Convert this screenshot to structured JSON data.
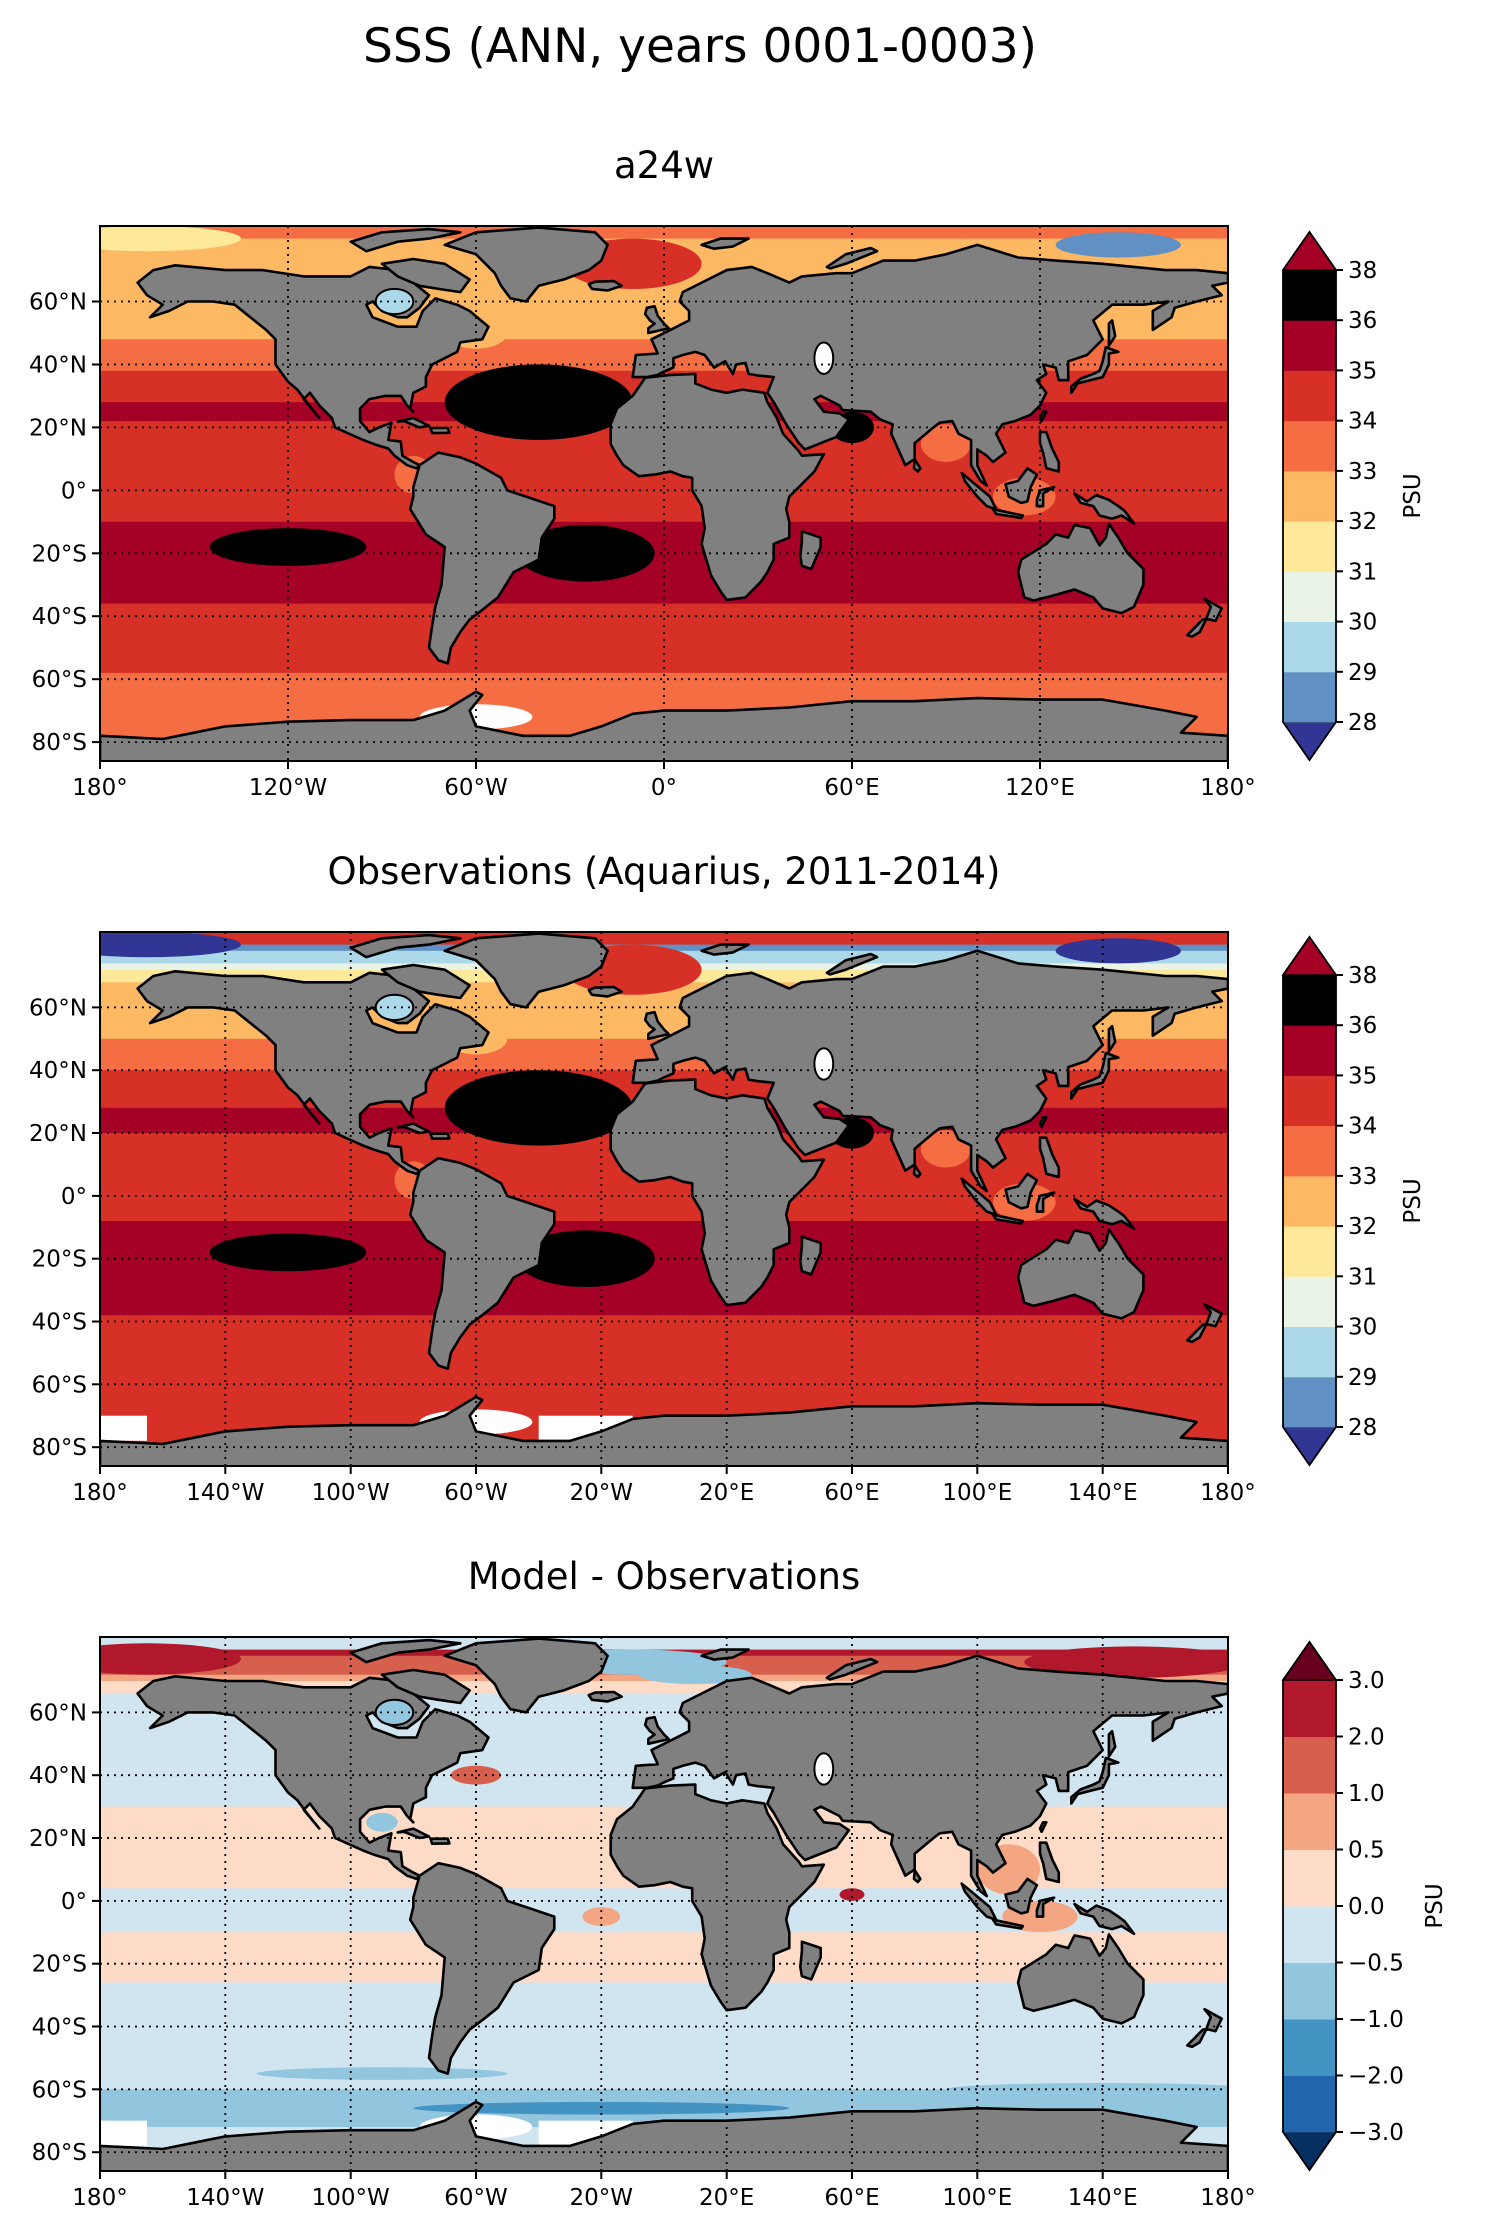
{
  "figure": {
    "title": "SSS (ANN, years 0001-0003)"
  },
  "colors": {
    "land": "#808080",
    "coast": "#000000",
    "missing": "#ffffff",
    "abs_levels": [
      "#313695",
      "#6190c4",
      "#abd9e9",
      "#e9f4e6",
      "#fee99a",
      "#fdb863",
      "#f46d43",
      "#d73027",
      "#a50026"
    ],
    "diff_levels": [
      "#053061",
      "#2166ac",
      "#4393c3",
      "#92c5de",
      "#d1e5f0",
      "#fddbc7",
      "#f4a582",
      "#d6604d",
      "#b2182b",
      "#67001f"
    ]
  },
  "chart_data": [
    {
      "type": "heatmap",
      "title": "a24w",
      "lat_ticks": [
        "60°N",
        "40°N",
        "20°N",
        "0°",
        "20°S",
        "40°S",
        "60°S",
        "80°S"
      ],
      "lon_ticks": [
        "180°",
        "120°W",
        "60°W",
        "0°",
        "60°E",
        "120°E",
        "180°"
      ],
      "lon_values": [
        -180,
        -120,
        -60,
        0,
        60,
        120,
        180
      ],
      "colorbar": {
        "label": "PSU",
        "levels": [
          28,
          29,
          30,
          31,
          32,
          33,
          34,
          35,
          36,
          38
        ],
        "tick_labels": [
          "28",
          "29",
          "30",
          "31",
          "32",
          "33",
          "34",
          "35",
          "36",
          "38"
        ],
        "extend": "both"
      },
      "zonal_salinity": [
        {
          "lat": 80,
          "psu": 32.0
        },
        {
          "lat": 65,
          "psu": 32.5
        },
        {
          "lat": 50,
          "psu": 32.8
        },
        {
          "lat": 35,
          "psu": 34.2
        },
        {
          "lat": 25,
          "psu": 35.2
        },
        {
          "lat": 10,
          "psu": 34.4
        },
        {
          "lat": 0,
          "psu": 34.5
        },
        {
          "lat": -20,
          "psu": 35.6
        },
        {
          "lat": -35,
          "psu": 35.0
        },
        {
          "lat": -50,
          "psu": 34.2
        },
        {
          "lat": -65,
          "psu": 33.8
        },
        {
          "lat": -78,
          "psu": 33.6
        }
      ]
    },
    {
      "type": "heatmap",
      "title": "Observations (Aquarius, 2011-2014)",
      "lat_ticks": [
        "60°N",
        "40°N",
        "20°N",
        "0°",
        "20°S",
        "40°S",
        "60°S",
        "80°S"
      ],
      "lon_ticks": [
        "180°",
        "140°W",
        "100°W",
        "60°W",
        "20°W",
        "20°E",
        "60°E",
        "100°E",
        "140°E",
        "180°"
      ],
      "lon_values": [
        -180,
        -140,
        -100,
        -60,
        -20,
        20,
        60,
        100,
        140,
        180
      ],
      "colorbar": {
        "label": "PSU",
        "levels": [
          28,
          29,
          30,
          31,
          32,
          33,
          34,
          35,
          36,
          38
        ],
        "tick_labels": [
          "28",
          "29",
          "30",
          "31",
          "32",
          "33",
          "34",
          "35",
          "36",
          "38"
        ],
        "extend": "both"
      },
      "zonal_salinity": [
        {
          "lat": 80,
          "psu": 28.5
        },
        {
          "lat": 65,
          "psu": 32.8
        },
        {
          "lat": 50,
          "psu": 33.0
        },
        {
          "lat": 35,
          "psu": 34.4
        },
        {
          "lat": 25,
          "psu": 35.3
        },
        {
          "lat": 10,
          "psu": 34.3
        },
        {
          "lat": 0,
          "psu": 34.6
        },
        {
          "lat": -20,
          "psu": 35.7
        },
        {
          "lat": -35,
          "psu": 35.1
        },
        {
          "lat": -50,
          "psu": 34.4
        },
        {
          "lat": -65,
          "psu": 34.1
        },
        {
          "lat": -78,
          "psu": 34.0
        }
      ]
    },
    {
      "type": "heatmap",
      "title": "Model - Observations",
      "lat_ticks": [
        "60°N",
        "40°N",
        "20°N",
        "0°",
        "20°S",
        "40°S",
        "60°S",
        "80°S"
      ],
      "lon_ticks": [
        "180°",
        "140°W",
        "100°W",
        "60°W",
        "20°W",
        "20°E",
        "60°E",
        "100°E",
        "140°E",
        "180°"
      ],
      "lon_values": [
        -180,
        -140,
        -100,
        -60,
        -20,
        20,
        60,
        100,
        140,
        180
      ],
      "colorbar": {
        "label": "PSU",
        "levels": [
          -3.0,
          -2.0,
          -1.0,
          -0.5,
          0.0,
          0.5,
          1.0,
          2.0,
          3.0
        ],
        "tick_labels": [
          "−3.0",
          "−2.0",
          "−1.0",
          "−0.5",
          "0.0",
          "0.5",
          "1.0",
          "2.0",
          "3.0"
        ],
        "extend": "both"
      },
      "zonal_salinity": [
        {
          "lat": 80,
          "psu": 2.5
        },
        {
          "lat": 65,
          "psu": -0.3
        },
        {
          "lat": 50,
          "psu": -0.2
        },
        {
          "lat": 35,
          "psu": -0.2
        },
        {
          "lat": 25,
          "psu": 0.2
        },
        {
          "lat": 10,
          "psu": 0.1
        },
        {
          "lat": 0,
          "psu": -0.1
        },
        {
          "lat": -20,
          "psu": 0.1
        },
        {
          "lat": -35,
          "psu": -0.2
        },
        {
          "lat": -50,
          "psu": -0.3
        },
        {
          "lat": -65,
          "psu": -0.6
        },
        {
          "lat": -78,
          "psu": -0.4
        }
      ]
    }
  ]
}
